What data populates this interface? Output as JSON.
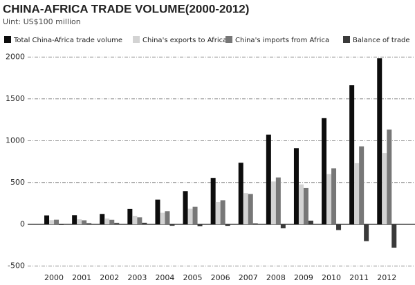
{
  "chart_data": {
    "type": "bar",
    "title": "CHINA-AFRICA TRADE VOLUME(2000-2012)",
    "subtitle": "Uint: US$100 million",
    "categories": [
      "2000",
      "2001",
      "2002",
      "2003",
      "2004",
      "2005",
      "2006",
      "2007",
      "2008",
      "2009",
      "2010",
      "2011",
      "2012"
    ],
    "series": [
      {
        "name": "Total China-Africa trade volume",
        "color": "#0d0d0d",
        "values": [
          106,
          108,
          124,
          185,
          295,
          397,
          555,
          736,
          1072,
          910,
          1269,
          1663,
          1985
        ]
      },
      {
        "name": "China's exports to Africa",
        "color": "#d3d3d3",
        "values": [
          50,
          60,
          70,
          102,
          138,
          187,
          267,
          373,
          512,
          477,
          600,
          731,
          853
        ]
      },
      {
        "name": "China's imports from Africa",
        "color": "#777777",
        "values": [
          55,
          48,
          54,
          83,
          157,
          211,
          288,
          363,
          560,
          433,
          669,
          932,
          1132
        ]
      },
      {
        "name": "Balance of trade",
        "color": "#3a3a3a",
        "values": [
          -5,
          12,
          16,
          19,
          -19,
          -24,
          -21,
          10,
          -48,
          44,
          -69,
          -201,
          -279
        ]
      }
    ],
    "ylim": [
      -560,
      2020
    ],
    "yticks": [
      -500,
      0,
      500,
      1000,
      1500,
      2000
    ],
    "grid": true
  }
}
